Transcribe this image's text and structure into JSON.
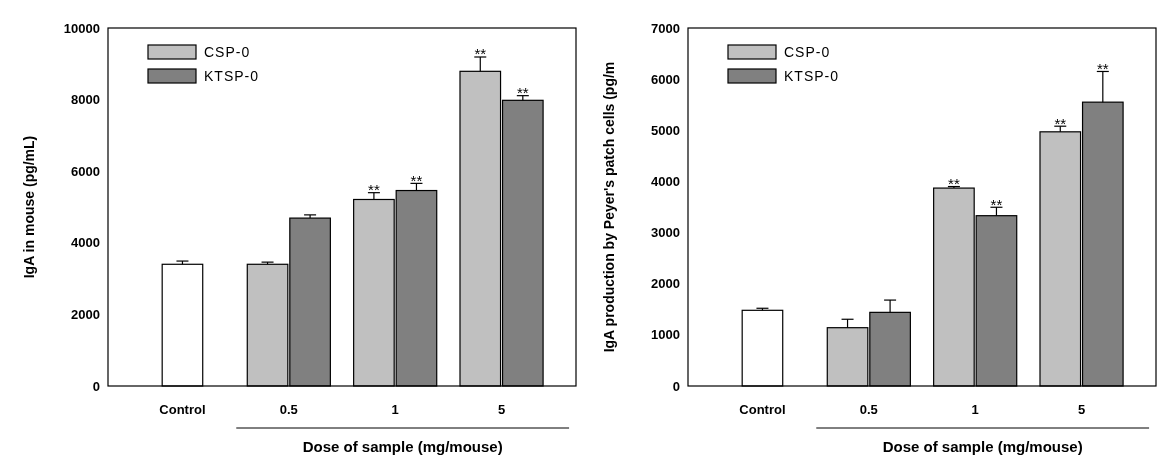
{
  "chart_data": [
    {
      "type": "bar",
      "ylabel": "IgA in mouse (pg/mL)",
      "xlabel": "Dose of sample (mg/mouse)",
      "categories": [
        "Control",
        "0.5",
        "1",
        "5"
      ],
      "series": [
        {
          "color": "#ffffff",
          "values": [
            3400,
            null,
            null,
            null
          ],
          "errors": [
            90,
            null,
            null,
            null
          ]
        },
        {
          "name": "CSP-0",
          "color": "#c0c0c0",
          "values": [
            null,
            3400,
            5210,
            8790
          ],
          "errors": [
            null,
            60,
            190,
            400
          ]
        },
        {
          "name": "KTSP-0",
          "color": "#808080",
          "values": [
            null,
            4690,
            5460,
            7980
          ],
          "errors": [
            null,
            90,
            200,
            130
          ]
        }
      ],
      "ylim": [
        0,
        10000
      ],
      "yticks": [
        0,
        2000,
        4000,
        6000,
        8000,
        10000
      ],
      "legend": "top left",
      "annotations": [
        {
          "text": "**",
          "x": "1",
          "y": 5210
        },
        {
          "text": "**",
          "x": "1",
          "y": 5460
        },
        {
          "text": "**",
          "x": "5",
          "y": 8790
        },
        {
          "text": "**",
          "x": "5",
          "y": 7980
        }
      ]
    },
    {
      "type": "bar",
      "ylabel": "IgA production by Peyer's patch cells (pg/m",
      "xlabel": "Dose of sample (mg/mouse)",
      "categories": [
        "Control",
        "0.5",
        "1",
        "5"
      ],
      "series": [
        {
          "color": "#ffffff",
          "values": [
            1480,
            null,
            null,
            null
          ],
          "errors": [
            40,
            null,
            null,
            null
          ]
        },
        {
          "name": "CSP-0",
          "color": "#c0c0c0",
          "values": [
            null,
            1140,
            3870,
            4970
          ],
          "errors": [
            null,
            165,
            30,
            110
          ]
        },
        {
          "name": "KTSP-0",
          "color": "#808080",
          "values": [
            null,
            1440,
            3330,
            5550
          ],
          "errors": [
            null,
            240,
            165,
            600
          ]
        }
      ],
      "ylim": [
        0,
        7000
      ],
      "yticks": [
        0,
        1000,
        2000,
        3000,
        4000,
        5000,
        6000,
        7000
      ],
      "legend": "top left",
      "annotations": [
        {
          "text": "**",
          "x": "1",
          "y": 3870
        },
        {
          "text": "**",
          "x": "1",
          "y": 3330
        },
        {
          "text": "**",
          "x": "5",
          "y": 4970
        },
        {
          "text": "**",
          "x": "5",
          "y": 5550
        }
      ]
    }
  ]
}
